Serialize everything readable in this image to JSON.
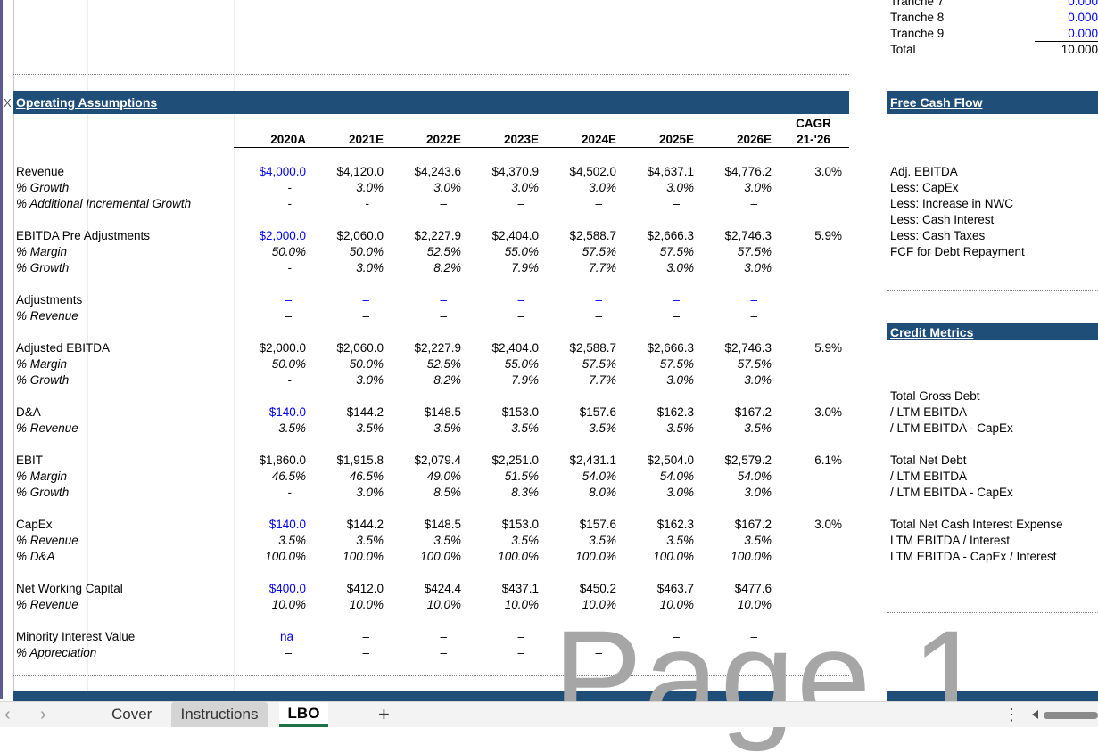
{
  "top_right": {
    "tranches": [
      {
        "label": "Tranche 7",
        "value": "0.000"
      },
      {
        "label": "Tranche 8",
        "value": "0.000"
      },
      {
        "label": "Tranche 9",
        "value": "0.000"
      }
    ],
    "total_label": "Total",
    "total_value": "10.000"
  },
  "row_marker": "X",
  "operating": {
    "title": "Operating Assumptions",
    "cagr_label_1": "CAGR",
    "cagr_label_2": "21-'26",
    "years": [
      "2020A",
      "2021E",
      "2022E",
      "2023E",
      "2024E",
      "2025E",
      "2026E"
    ],
    "rows": [
      {
        "label": "Revenue",
        "italic": false,
        "values": [
          "$4,000.0",
          "$4,120.0",
          "$4,243.6",
          "$4,370.9",
          "$4,502.0",
          "$4,637.1",
          "$4,776.2"
        ],
        "first_blue": true,
        "cagr": "3.0%"
      },
      {
        "label": "% Growth",
        "italic": true,
        "values": [
          "-",
          "3.0%",
          "3.0%",
          "3.0%",
          "3.0%",
          "3.0%",
          "3.0%"
        ],
        "first_blue": false,
        "cagr": ""
      },
      {
        "label": "% Additional Incremental Growth",
        "italic": true,
        "values": [
          "-",
          "-",
          "–",
          "–",
          "–",
          "–",
          "–"
        ],
        "first_blue": false,
        "cagr": ""
      },
      {
        "label": "EBITDA Pre Adjustments",
        "italic": false,
        "values": [
          "$2,000.0",
          "$2,060.0",
          "$2,227.9",
          "$2,404.0",
          "$2,588.7",
          "$2,666.3",
          "$2,746.3"
        ],
        "first_blue": true,
        "cagr": "5.9%"
      },
      {
        "label": "% Margin",
        "italic": true,
        "values": [
          "50.0%",
          "50.0%",
          "52.5%",
          "55.0%",
          "57.5%",
          "57.5%",
          "57.5%"
        ],
        "first_blue": false,
        "cagr": ""
      },
      {
        "label": "% Growth",
        "italic": true,
        "values": [
          "-",
          "3.0%",
          "8.2%",
          "7.9%",
          "7.7%",
          "3.0%",
          "3.0%"
        ],
        "first_blue": false,
        "cagr": ""
      },
      {
        "label": "Adjustments",
        "italic": false,
        "values": [
          "–",
          "–",
          "–",
          "–",
          "–",
          "–",
          "–"
        ],
        "first_blue": false,
        "all_blue": true,
        "cagr": ""
      },
      {
        "label": "% Revenue",
        "italic": true,
        "values": [
          "–",
          "–",
          "–",
          "–",
          "–",
          "–",
          "–"
        ],
        "first_blue": false,
        "cagr": ""
      },
      {
        "label": "Adjusted EBITDA",
        "italic": false,
        "values": [
          "$2,000.0",
          "$2,060.0",
          "$2,227.9",
          "$2,404.0",
          "$2,588.7",
          "$2,666.3",
          "$2,746.3"
        ],
        "first_blue": false,
        "cagr": "5.9%"
      },
      {
        "label": "% Margin",
        "italic": true,
        "values": [
          "50.0%",
          "50.0%",
          "52.5%",
          "55.0%",
          "57.5%",
          "57.5%",
          "57.5%"
        ],
        "first_blue": false,
        "cagr": ""
      },
      {
        "label": "% Growth",
        "italic": true,
        "values": [
          "-",
          "3.0%",
          "8.2%",
          "7.9%",
          "7.7%",
          "3.0%",
          "3.0%"
        ],
        "first_blue": false,
        "cagr": ""
      },
      {
        "label": "D&A",
        "italic": false,
        "values": [
          "$140.0",
          "$144.2",
          "$148.5",
          "$153.0",
          "$157.6",
          "$162.3",
          "$167.2"
        ],
        "first_blue": true,
        "cagr": "3.0%"
      },
      {
        "label": "% Revenue",
        "italic": true,
        "values": [
          "3.5%",
          "3.5%",
          "3.5%",
          "3.5%",
          "3.5%",
          "3.5%",
          "3.5%"
        ],
        "first_blue": false,
        "cagr": ""
      },
      {
        "label": "EBIT",
        "italic": false,
        "values": [
          "$1,860.0",
          "$1,915.8",
          "$2,079.4",
          "$2,251.0",
          "$2,431.1",
          "$2,504.0",
          "$2,579.2"
        ],
        "first_blue": false,
        "cagr": "6.1%"
      },
      {
        "label": "% Margin",
        "italic": true,
        "values": [
          "46.5%",
          "46.5%",
          "49.0%",
          "51.5%",
          "54.0%",
          "54.0%",
          "54.0%"
        ],
        "first_blue": false,
        "cagr": ""
      },
      {
        "label": "% Growth",
        "italic": true,
        "values": [
          "-",
          "3.0%",
          "8.5%",
          "8.3%",
          "8.0%",
          "3.0%",
          "3.0%"
        ],
        "first_blue": false,
        "cagr": ""
      },
      {
        "label": "CapEx",
        "italic": false,
        "values": [
          "$140.0",
          "$144.2",
          "$148.5",
          "$153.0",
          "$157.6",
          "$162.3",
          "$167.2"
        ],
        "first_blue": true,
        "cagr": "3.0%"
      },
      {
        "label": "% Revenue",
        "italic": true,
        "values": [
          "3.5%",
          "3.5%",
          "3.5%",
          "3.5%",
          "3.5%",
          "3.5%",
          "3.5%"
        ],
        "first_blue": false,
        "cagr": ""
      },
      {
        "label": "% D&A",
        "italic": true,
        "values": [
          "100.0%",
          "100.0%",
          "100.0%",
          "100.0%",
          "100.0%",
          "100.0%",
          "100.0%"
        ],
        "first_blue": false,
        "cagr": ""
      },
      {
        "label": "Net Working Capital",
        "italic": false,
        "values": [
          "$400.0",
          "$412.0",
          "$424.4",
          "$437.1",
          "$450.2",
          "$463.7",
          "$477.6"
        ],
        "first_blue": true,
        "cagr": ""
      },
      {
        "label": "% Revenue",
        "italic": true,
        "values": [
          "10.0%",
          "10.0%",
          "10.0%",
          "10.0%",
          "10.0%",
          "10.0%",
          "10.0%"
        ],
        "first_blue": false,
        "cagr": ""
      },
      {
        "label": "Minority Interest Value",
        "italic": false,
        "values": [
          "na",
          "–",
          "–",
          "–",
          "–",
          "–",
          "–"
        ],
        "first_blue": true,
        "cagr": ""
      },
      {
        "label": "% Appreciation",
        "italic": true,
        "values": [
          "–",
          "–",
          "–",
          "–",
          "–",
          "–",
          "–"
        ],
        "first_blue": false,
        "cagr": ""
      }
    ]
  },
  "fcf": {
    "title": "Free Cash Flow",
    "items": [
      "Adj. EBITDA",
      "Less: CapEx",
      "Less: Increase in NWC",
      "Less: Cash Interest",
      "Less: Cash Taxes",
      "FCF for Debt Repayment"
    ]
  },
  "credit": {
    "title": "Credit Metrics",
    "items": [
      "Total Gross Debt",
      "/ LTM EBITDA",
      "/ LTM EBITDA - CapEx",
      "Total Net Debt",
      "/ LTM EBITDA",
      "/ LTM EBITDA - CapEx",
      "Total Net Cash Interest Expense",
      "LTM EBITDA / Interest",
      "LTM EBITDA - CapEx / Interest"
    ]
  },
  "watermark": "Page 1",
  "tabs": {
    "prev": "‹",
    "next": "›",
    "items": [
      "Cover",
      "Instructions",
      "LBO"
    ],
    "add": "+",
    "more": "⋮"
  }
}
